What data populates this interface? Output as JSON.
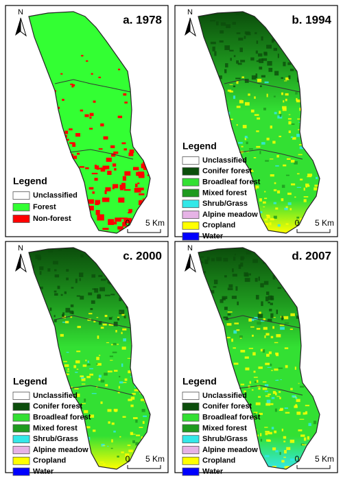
{
  "panels": [
    {
      "title": "a. 1978",
      "north": "N",
      "legend_title": "Legend",
      "legend": [
        {
          "label": "Unclassified",
          "color": "#ffffff"
        },
        {
          "label": "Forest",
          "color": "#33ff33"
        },
        {
          "label": "Non-forest",
          "color": "#ff0000"
        }
      ],
      "scale": {
        "start": "0",
        "end": "5 Km"
      }
    },
    {
      "title": "b. 1994",
      "north": "N",
      "legend_title": "Legend",
      "legend": [
        {
          "label": "Unclassified",
          "color": "#ffffff"
        },
        {
          "label": "Conifer forest",
          "color": "#0b4d0b"
        },
        {
          "label": "Broadleaf forest",
          "color": "#33e033"
        },
        {
          "label": "Mixed forest",
          "color": "#1f9a1f"
        },
        {
          "label": "Shrub/Grass",
          "color": "#33e8e8"
        },
        {
          "label": "Alpine meadow",
          "color": "#e6b3e6"
        },
        {
          "label": "Cropland",
          "color": "#ffff00"
        },
        {
          "label": "Water",
          "color": "#0000ff"
        }
      ],
      "scale": {
        "start": "0",
        "end": "5 Km"
      }
    },
    {
      "title": "c. 2000",
      "north": "N",
      "legend_title": "Legend",
      "legend": [
        {
          "label": "Unclassified",
          "color": "#ffffff"
        },
        {
          "label": "Conifer forest",
          "color": "#0b4d0b"
        },
        {
          "label": "Broadleaf forest",
          "color": "#33e033"
        },
        {
          "label": "Mixed forest",
          "color": "#1f9a1f"
        },
        {
          "label": "Shrub/Grass",
          "color": "#33e8e8"
        },
        {
          "label": "Alpine meadow",
          "color": "#e6b3e6"
        },
        {
          "label": "Cropland",
          "color": "#ffff00"
        },
        {
          "label": "Water",
          "color": "#0000ff"
        }
      ],
      "scale": {
        "start": "0",
        "end": "5 Km"
      }
    },
    {
      "title": "d. 2007",
      "north": "N",
      "legend_title": "Legend",
      "legend": [
        {
          "label": "Unclassified",
          "color": "#ffffff"
        },
        {
          "label": "Conifer forest",
          "color": "#0b4d0b"
        },
        {
          "label": "Broadleaf forest",
          "color": "#33e033"
        },
        {
          "label": "Mixed forest",
          "color": "#1f9a1f"
        },
        {
          "label": "Shrub/Grass",
          "color": "#33e8e8"
        },
        {
          "label": "Alpine meadow",
          "color": "#e6b3e6"
        },
        {
          "label": "Cropland",
          "color": "#ffff00"
        },
        {
          "label": "Water",
          "color": "#0000ff"
        }
      ],
      "scale": {
        "start": "0",
        "end": "5 Km"
      }
    }
  ]
}
